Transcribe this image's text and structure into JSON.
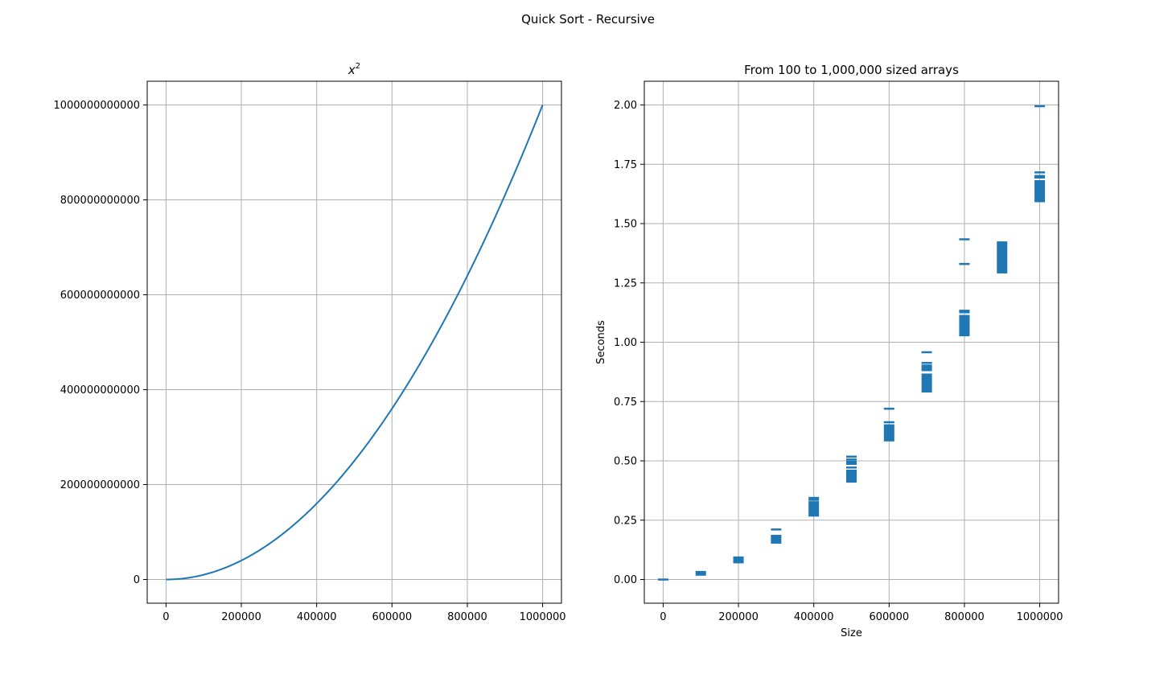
{
  "suptitle": "Quick Sort - Recursive",
  "colors": {
    "series": "#1f77b4",
    "grid": "#b0b0b0",
    "axis": "#000000"
  },
  "chart_data": [
    {
      "type": "line",
      "title": "x^2",
      "title_base": "x",
      "title_sup": "2",
      "xlabel": "",
      "ylabel": "",
      "xlim": [
        -50000,
        1050000
      ],
      "ylim": [
        -50000000000,
        1050000000000
      ],
      "grid": true,
      "xticks": [
        0,
        200000,
        400000,
        600000,
        800000,
        1000000
      ],
      "xtick_labels": [
        "0",
        "200000",
        "400000",
        "600000",
        "800000",
        "1000000"
      ],
      "yticks": [
        0,
        200000000000,
        400000000000,
        600000000000,
        800000000000,
        1000000000000
      ],
      "ytick_labels": [
        "0",
        "200000000000",
        "400000000000",
        "600000000000",
        "800000000000",
        "1000000000000"
      ],
      "series": [
        {
          "function": "x^2",
          "x_range": [
            0,
            1000000
          ]
        }
      ]
    },
    {
      "type": "scatter",
      "title": "From 100 to 1,000,000 sized arrays",
      "xlabel": "Size",
      "ylabel": "Seconds",
      "xlim": [
        -50000,
        1050000
      ],
      "ylim": [
        -0.1,
        2.1
      ],
      "grid": true,
      "marker": "wide vertical bars (many overlapping points)",
      "xticks": [
        0,
        200000,
        400000,
        600000,
        800000,
        1000000
      ],
      "xtick_labels": [
        "0",
        "200000",
        "400000",
        "600000",
        "800000",
        "1000000"
      ],
      "yticks": [
        0.0,
        0.25,
        0.5,
        0.75,
        1.0,
        1.25,
        1.5,
        1.75,
        2.0
      ],
      "ytick_labels": [
        "0.00",
        "0.25",
        "0.50",
        "0.75",
        "1.00",
        "1.25",
        "1.50",
        "1.75",
        "2.00"
      ],
      "points": [
        {
          "x": 100,
          "y_ranges": [
            [
              -0.004,
              0.004
            ]
          ]
        },
        {
          "x": 100000,
          "y_ranges": [
            [
              0.016,
              0.036
            ]
          ]
        },
        {
          "x": 200000,
          "y_ranges": [
            [
              0.068,
              0.097
            ]
          ]
        },
        {
          "x": 300000,
          "y_ranges": [
            [
              0.151,
              0.188
            ],
            [
              0.211,
              0.215
            ]
          ]
        },
        {
          "x": 400000,
          "y_ranges": [
            [
              0.265,
              0.33
            ],
            [
              0.335,
              0.34
            ],
            [
              0.343,
              0.348
            ]
          ]
        },
        {
          "x": 500000,
          "y_ranges": [
            [
              0.408,
              0.463
            ],
            [
              0.47,
              0.476
            ],
            [
              0.483,
              0.5
            ],
            [
              0.508,
              0.51
            ],
            [
              0.517,
              0.522
            ]
          ]
        },
        {
          "x": 600000,
          "y_ranges": [
            [
              0.582,
              0.654
            ],
            [
              0.66,
              0.667
            ],
            [
              0.72,
              0.724
            ]
          ]
        },
        {
          "x": 700000,
          "y_ranges": [
            [
              0.788,
              0.868
            ],
            [
              0.878,
              0.906
            ],
            [
              0.912,
              0.917
            ],
            [
              0.958,
              0.962
            ]
          ]
        },
        {
          "x": 800000,
          "y_ranges": [
            [
              1.025,
              1.115
            ],
            [
              1.122,
              1.137
            ],
            [
              1.33,
              1.334
            ],
            [
              1.434,
              1.438
            ]
          ]
        },
        {
          "x": 900000,
          "y_ranges": [
            [
              1.29,
              1.425
            ]
          ]
        },
        {
          "x": 1000000,
          "y_ranges": [
            [
              1.59,
              1.683
            ],
            [
              1.69,
              1.705
            ],
            [
              1.712,
              1.72
            ],
            [
              1.994,
              1.999
            ]
          ]
        }
      ]
    }
  ]
}
